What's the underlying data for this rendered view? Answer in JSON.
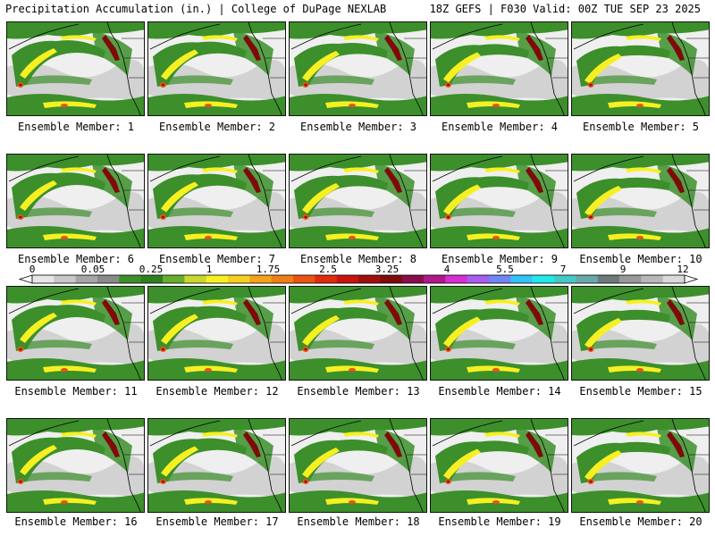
{
  "header": {
    "left": "Precipitation Accumulation (in.) | College of DuPage NEXLAB",
    "right": "18Z GEFS | F030 Valid: 00Z TUE SEP 23 2025"
  },
  "colorbar": {
    "labels": [
      "0",
      "0.05",
      "0.25",
      "1",
      "1.75",
      "2.5",
      "3.25",
      "4",
      "5.5",
      "7",
      "9",
      "12"
    ],
    "colors": [
      "#e6e6e6",
      "#c8c8c8",
      "#a6a6a6",
      "#8a8a8a",
      "#3c8f2b",
      "#2d7f22",
      "#67ae2d",
      "#c7d82f",
      "#f6f022",
      "#f6cf1f",
      "#f2a21b",
      "#ef7e16",
      "#e85412",
      "#de2a0e",
      "#c8140c",
      "#a10e0a",
      "#7f0a0a",
      "#8a0e4a",
      "#b0188a",
      "#d62ed2",
      "#a95cf0",
      "#6f86f4",
      "#33c3f6",
      "#22e8e8",
      "#46c9c5",
      "#68a8a8",
      "#6e7a7a",
      "#999999",
      "#b8b8b8",
      "#dadada"
    ],
    "legend_colors": {
      "dry": "#efefef",
      "light": "#3c8f2b",
      "moderate": "#f6f022",
      "heavy": "#e85412",
      "extreme": "#7f0a0a"
    }
  },
  "members": [
    {
      "label": "Ensemble Member: 1"
    },
    {
      "label": "Ensemble Member: 2"
    },
    {
      "label": "Ensemble Member: 3"
    },
    {
      "label": "Ensemble Member: 4"
    },
    {
      "label": "Ensemble Member: 5"
    },
    {
      "label": "Ensemble Member: 6"
    },
    {
      "label": "Ensemble Member: 7"
    },
    {
      "label": "Ensemble Member: 8"
    },
    {
      "label": "Ensemble Member: 9"
    },
    {
      "label": "Ensemble Member: 10"
    },
    {
      "label": "Ensemble Member: 11"
    },
    {
      "label": "Ensemble Member: 12"
    },
    {
      "label": "Ensemble Member: 13"
    },
    {
      "label": "Ensemble Member: 14"
    },
    {
      "label": "Ensemble Member: 15"
    },
    {
      "label": "Ensemble Member: 16"
    },
    {
      "label": "Ensemble Member: 17"
    },
    {
      "label": "Ensemble Member: 18"
    },
    {
      "label": "Ensemble Member: 19"
    },
    {
      "label": "Ensemble Member: 20"
    }
  ]
}
